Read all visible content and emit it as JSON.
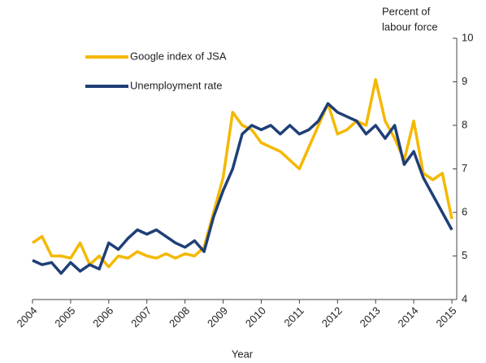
{
  "chart_data": {
    "type": "line",
    "x_label": "Year",
    "y_label": [
      "Percent of",
      "labour force"
    ],
    "x": [
      2004,
      2004.25,
      2004.5,
      2004.75,
      2005,
      2005.25,
      2005.5,
      2005.75,
      2006,
      2006.25,
      2006.5,
      2006.75,
      2007,
      2007.25,
      2007.5,
      2007.75,
      2008,
      2008.25,
      2008.5,
      2008.75,
      2009,
      2009.25,
      2009.5,
      2009.75,
      2010,
      2010.25,
      2010.5,
      2010.75,
      2011,
      2011.25,
      2011.5,
      2011.75,
      2012,
      2012.25,
      2012.5,
      2012.75,
      2013,
      2013.25,
      2013.5,
      2013.75,
      2014,
      2014.25,
      2014.5,
      2014.75,
      2015
    ],
    "series": [
      {
        "name": "Google index of JSA",
        "color": "#f5b800",
        "values": [
          5.3,
          5.45,
          5.0,
          5.0,
          4.95,
          5.3,
          4.8,
          5.0,
          4.75,
          5.0,
          4.95,
          5.1,
          5.0,
          4.95,
          5.05,
          4.95,
          5.05,
          5.0,
          5.2,
          6.0,
          6.8,
          8.3,
          8.0,
          7.9,
          7.6,
          7.5,
          7.4,
          7.2,
          7.0,
          7.5,
          8.0,
          8.5,
          7.8,
          7.9,
          8.1,
          8.0,
          9.05,
          8.1,
          7.7,
          7.2,
          8.1,
          6.9,
          6.75,
          6.9,
          5.85
        ]
      },
      {
        "name": "Unemployment rate",
        "color": "#1f3f77",
        "values": [
          4.9,
          4.8,
          4.85,
          4.6,
          4.85,
          4.65,
          4.8,
          4.7,
          5.3,
          5.15,
          5.4,
          5.6,
          5.5,
          5.6,
          5.45,
          5.3,
          5.2,
          5.35,
          5.1,
          5.9,
          6.5,
          7.0,
          7.8,
          8.0,
          7.9,
          8.0,
          7.8,
          8.0,
          7.8,
          7.9,
          8.1,
          8.5,
          8.3,
          8.2,
          8.1,
          7.8,
          8.0,
          7.7,
          8.0,
          7.1,
          7.4,
          6.8,
          6.4,
          6.0,
          5.6
        ]
      }
    ],
    "xlim": [
      2004,
      2015
    ],
    "xticks": [
      2004,
      2005,
      2006,
      2007,
      2008,
      2009,
      2010,
      2011,
      2012,
      2013,
      2014,
      2015
    ],
    "ylim": [
      4,
      10
    ],
    "yticks": [
      4,
      5,
      6,
      7,
      8,
      9,
      10
    ],
    "grid": false
  }
}
